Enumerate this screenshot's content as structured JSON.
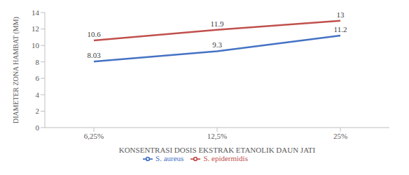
{
  "chart_data": {
    "type": "line",
    "x_label": "KONSENTRASI DOSIS EKSTRAK ETANOLIK DAUN JATI",
    "y_label": "DIAMETER ZONA HAMBAT (MM)",
    "categories": [
      "6,25%",
      "12,5%",
      "25%"
    ],
    "series": [
      {
        "name": "S. aureus",
        "color": "#4472c4",
        "values": [
          8.03,
          9.3,
          11.2
        ]
      },
      {
        "name": "S. epidermidis",
        "color": "#c0504d",
        "values": [
          10.6,
          11.9,
          13
        ]
      }
    ],
    "ylim": [
      0,
      14
    ],
    "yticks": [
      0,
      2,
      4,
      6,
      8,
      10,
      12,
      14
    ],
    "grid": false,
    "legend": "bottom",
    "data_labels": true
  }
}
